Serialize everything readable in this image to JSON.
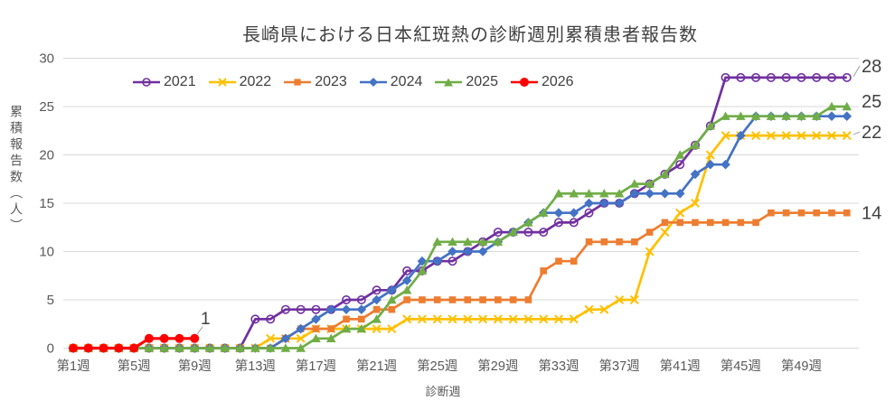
{
  "chart_data": {
    "type": "line",
    "title": "長崎県における日本紅斑熱の診断週別累積患者報告数",
    "xlabel": "診断週",
    "ylabel": "累積報告数（人）",
    "ylim": [
      0,
      30
    ],
    "ytick_interval": 5,
    "yticks": [
      0,
      5,
      10,
      15,
      20,
      25,
      30
    ],
    "weeks_total": 52,
    "grid": true,
    "legend_position": "top-inside",
    "xticks": [
      {
        "week": 1,
        "label": "第1週"
      },
      {
        "week": 5,
        "label": "第5週"
      },
      {
        "week": 9,
        "label": "第9週"
      },
      {
        "week": 13,
        "label": "第13週"
      },
      {
        "week": 17,
        "label": "第17週"
      },
      {
        "week": 21,
        "label": "第21週"
      },
      {
        "week": 25,
        "label": "第25週"
      },
      {
        "week": 29,
        "label": "第29週"
      },
      {
        "week": 33,
        "label": "第33週"
      },
      {
        "week": 37,
        "label": "第37週"
      },
      {
        "week": 41,
        "label": "第41週"
      },
      {
        "week": 45,
        "label": "第45週"
      },
      {
        "week": 49,
        "label": "第49週"
      }
    ],
    "series": [
      {
        "name": "2021",
        "color": "#7030A0",
        "marker": "open-circle",
        "values": [
          0,
          0,
          0,
          0,
          0,
          0,
          0,
          0,
          0,
          0,
          0,
          0,
          3,
          3,
          4,
          4,
          4,
          4,
          5,
          5,
          6,
          6,
          8,
          8,
          9,
          9,
          10,
          11,
          12,
          12,
          12,
          12,
          13,
          13,
          14,
          15,
          15,
          16,
          17,
          18,
          19,
          21,
          23,
          28,
          28,
          28,
          28,
          28,
          28,
          28,
          28,
          28
        ]
      },
      {
        "name": "2022",
        "color": "#FFC000",
        "marker": "x",
        "values": [
          0,
          0,
          0,
          0,
          0,
          0,
          0,
          0,
          0,
          0,
          0,
          0,
          0,
          1,
          1,
          1,
          2,
          2,
          2,
          2,
          2,
          2,
          3,
          3,
          3,
          3,
          3,
          3,
          3,
          3,
          3,
          3,
          3,
          3,
          4,
          4,
          5,
          5,
          10,
          12,
          14,
          15,
          20,
          22,
          22,
          22,
          22,
          22,
          22,
          22,
          22,
          22
        ]
      },
      {
        "name": "2023",
        "color": "#ED7D31",
        "marker": "square",
        "values": [
          0,
          0,
          0,
          0,
          0,
          0,
          0,
          0,
          0,
          0,
          0,
          0,
          0,
          0,
          1,
          2,
          2,
          2,
          3,
          3,
          4,
          4,
          5,
          5,
          5,
          5,
          5,
          5,
          5,
          5,
          5,
          8,
          9,
          9,
          11,
          11,
          11,
          11,
          12,
          13,
          13,
          13,
          13,
          13,
          13,
          13,
          14,
          14,
          14,
          14,
          14,
          14
        ]
      },
      {
        "name": "2024",
        "color": "#4472C4",
        "marker": "diamond",
        "values": [
          0,
          0,
          0,
          0,
          0,
          0,
          0,
          0,
          0,
          0,
          0,
          0,
          0,
          0,
          1,
          2,
          3,
          4,
          4,
          4,
          5,
          6,
          7,
          9,
          9,
          10,
          10,
          10,
          11,
          12,
          13,
          14,
          14,
          14,
          15,
          15,
          15,
          16,
          16,
          16,
          16,
          18,
          19,
          19,
          22,
          24,
          24,
          24,
          24,
          24,
          24,
          24
        ]
      },
      {
        "name": "2025",
        "color": "#70AD47",
        "marker": "triangle",
        "values": [
          0,
          0,
          0,
          0,
          0,
          0,
          0,
          0,
          0,
          0,
          0,
          0,
          0,
          0,
          0,
          0,
          1,
          1,
          2,
          2,
          3,
          5,
          6,
          8,
          11,
          11,
          11,
          11,
          11,
          12,
          13,
          14,
          16,
          16,
          16,
          16,
          16,
          17,
          17,
          18,
          20,
          21,
          23,
          24,
          24,
          24,
          24,
          24,
          24,
          24,
          25,
          25
        ]
      },
      {
        "name": "2026",
        "color": "#FF0000",
        "marker": "circle",
        "values": [
          0,
          0,
          0,
          0,
          0,
          1,
          1,
          1,
          1
        ]
      }
    ],
    "end_labels": [
      {
        "series": "2021",
        "text": "28",
        "leader": true
      },
      {
        "series": "2025",
        "text": "25",
        "leader": false
      },
      {
        "series": "2022",
        "text": "22",
        "leader": true
      },
      {
        "series": "2023",
        "text": "14",
        "leader": false
      }
    ],
    "annotation": {
      "series": "2026",
      "text": "1"
    }
  }
}
